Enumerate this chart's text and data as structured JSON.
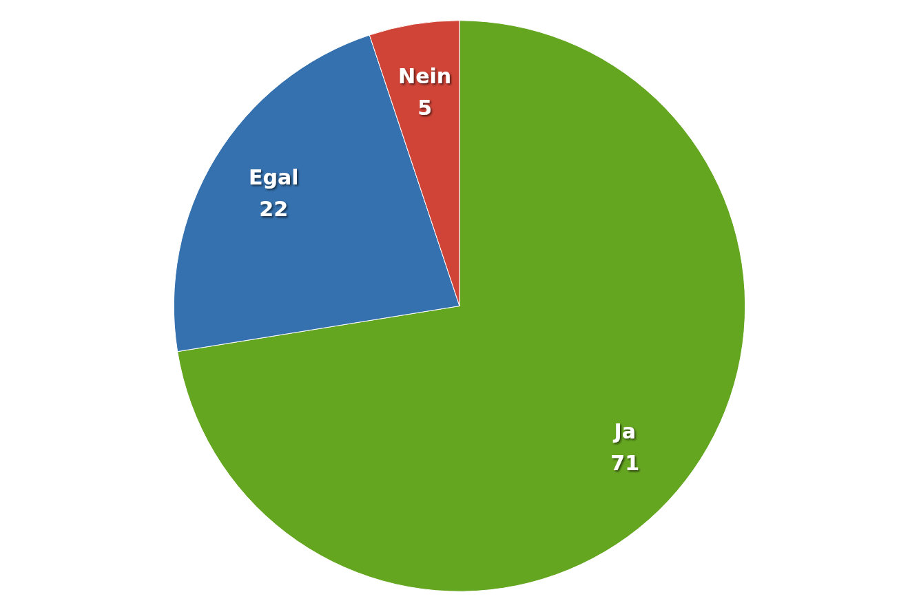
{
  "chart_data": {
    "type": "pie",
    "categories": [
      "Ja",
      "Egal",
      "Nein"
    ],
    "values": [
      71,
      22,
      5
    ],
    "colors": [
      "#65a621",
      "#3571ae",
      "#d04437"
    ],
    "data_labels": true,
    "legend": false
  }
}
